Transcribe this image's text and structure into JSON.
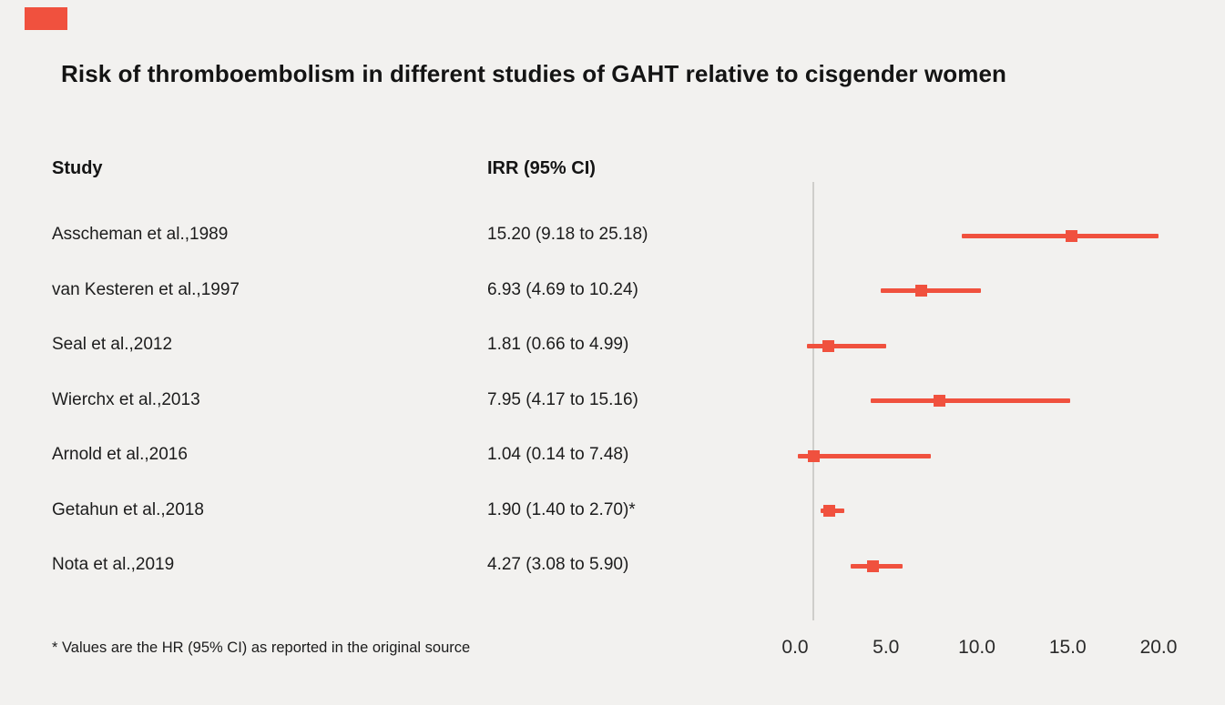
{
  "accent_color": "#f0513e",
  "chart_data": {
    "type": "forest",
    "title": "Risk of thromboembolism in different studies of GAHT relative to cisgender women",
    "columns": {
      "study": "Study",
      "effect": "IRR (95% CI)"
    },
    "x_axis": {
      "min": 0,
      "max": 20,
      "reference_line": 1.0,
      "ticks": [
        {
          "value": 0,
          "label": "0.0"
        },
        {
          "value": 5,
          "label": "5.0"
        },
        {
          "value": 10,
          "label": "10.0"
        },
        {
          "value": 15,
          "label": "15.0"
        },
        {
          "value": 20,
          "label": "20.0"
        }
      ]
    },
    "studies": [
      {
        "study": "Asscheman et al.,1989",
        "effect_label": "15.20 (9.18 to 25.18)",
        "estimate": 15.2,
        "ci_low": 9.18,
        "ci_high": 25.18
      },
      {
        "study": "van Kesteren et al.,1997",
        "effect_label": "6.93 (4.69 to 10.24)",
        "estimate": 6.93,
        "ci_low": 4.69,
        "ci_high": 10.24
      },
      {
        "study": "Seal et al.,2012",
        "effect_label": "1.81 (0.66 to 4.99)",
        "estimate": 1.81,
        "ci_low": 0.66,
        "ci_high": 4.99
      },
      {
        "study": "Wierchx et al.,2013",
        "effect_label": "7.95 (4.17 to 15.16)",
        "estimate": 7.95,
        "ci_low": 4.17,
        "ci_high": 15.16
      },
      {
        "study": "Arnold et al.,2016",
        "effect_label": "1.04 (0.14 to 7.48)",
        "estimate": 1.04,
        "ci_low": 0.14,
        "ci_high": 7.48
      },
      {
        "study": "Getahun et al.,2018",
        "effect_label": "1.90 (1.40 to 2.70)*",
        "estimate": 1.9,
        "ci_low": 1.4,
        "ci_high": 2.7
      },
      {
        "study": "Nota et al.,2019",
        "effect_label": "4.27 (3.08 to 5.90)",
        "estimate": 4.27,
        "ci_low": 3.08,
        "ci_high": 5.9
      }
    ],
    "footnote": "* Values are the HR (95% CI) as reported in the original source"
  }
}
